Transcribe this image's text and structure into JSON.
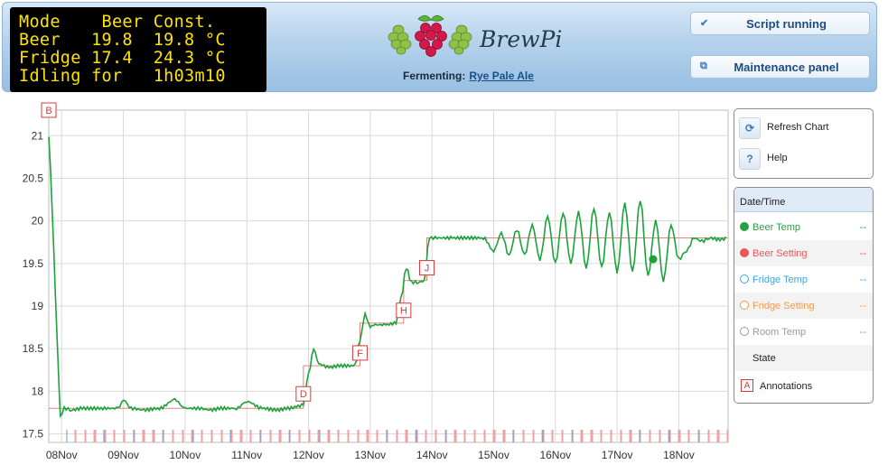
{
  "lcd": {
    "lines": [
      "Mode    Beer Const.",
      "Beer   19.8  19.8 °C",
      "Fridge 17.4  24.3 °C",
      "Idling for   1h03m10"
    ]
  },
  "brand": {
    "logo_icon": "raspberry-hops-logo-icon",
    "name": "BrewPi"
  },
  "fermenting": {
    "label": "Fermenting:",
    "beer_name": "Rye Pale Ale"
  },
  "buttons": {
    "script": {
      "label": "Script running",
      "icon": "check-icon"
    },
    "maintenance": {
      "label": "Maintenance panel",
      "icon": "window-icon"
    }
  },
  "controls": {
    "refresh": {
      "label": "Refresh Chart",
      "icon": "refresh-icon"
    },
    "help": {
      "label": "Help",
      "icon": "help-icon"
    }
  },
  "legend": {
    "header": "Date/Time",
    "items": [
      {
        "name": "Beer Temp",
        "value": "--",
        "color": "#27a043",
        "filled": true
      },
      {
        "name": "Beer Setting",
        "value": "--",
        "color": "#e85858",
        "filled": true
      },
      {
        "name": "Fridge Temp",
        "value": "--",
        "color": "#38a6e6",
        "filled": false
      },
      {
        "name": "Fridge Setting",
        "value": "--",
        "color": "#f29a4a",
        "filled": false
      },
      {
        "name": "Room Temp",
        "value": "--",
        "color": "#9a9a9a",
        "filled": false
      },
      {
        "name": "State",
        "value": "",
        "color": "#ffffff",
        "filled": false
      }
    ],
    "annotations": {
      "box_letter": "A",
      "label": "Annotations"
    }
  },
  "chart_data": {
    "type": "line",
    "x_type": "date",
    "x_range": [
      "2013-11-07T19:00",
      "2013-11-18T19:10"
    ],
    "x_ticks": [
      {
        "label": "08Nov",
        "date": "2013-11-08T00:00"
      },
      {
        "label": "09Nov",
        "date": "2013-11-09T00:00"
      },
      {
        "label": "10Nov",
        "date": "2013-11-10T00:00"
      },
      {
        "label": "11Nov",
        "date": "2013-11-11T00:00"
      },
      {
        "label": "12Nov",
        "date": "2013-11-12T00:00"
      },
      {
        "label": "13Nov",
        "date": "2013-11-13T00:00"
      },
      {
        "label": "14Nov",
        "date": "2013-11-14T00:00"
      },
      {
        "label": "15Nov",
        "date": "2013-11-15T00:00"
      },
      {
        "label": "16Nov",
        "date": "2013-11-16T00:00"
      },
      {
        "label": "17Nov",
        "date": "2013-11-17T00:00"
      },
      {
        "label": "18Nov",
        "date": "2013-11-18T00:00"
      }
    ],
    "y_range": [
      17.4,
      21.3
    ],
    "y_ticks": [
      17.5,
      18,
      18.5,
      19,
      19.5,
      20,
      20.5,
      21
    ],
    "grid": true,
    "series": [
      {
        "name": "Beer Temp",
        "color": "#1aa33a",
        "x": [
          "2013-11-07T19:00",
          "2013-11-07T19:40",
          "2013-11-07T20:30",
          "2013-11-07T21:30",
          "2013-11-07T22:30",
          "2013-11-07T23:30",
          "2013-11-08T01:00",
          "2013-11-08T04:00",
          "2013-11-08T08:00",
          "2013-11-08T12:00",
          "2013-11-08T16:00",
          "2013-11-08T22:00",
          "2013-11-09T00:00",
          "2013-11-09T03:00",
          "2013-11-09T08:00",
          "2013-11-09T14:00",
          "2013-11-09T20:00",
          "2013-11-10T00:00",
          "2013-11-10T05:00",
          "2013-11-10T10:00",
          "2013-11-10T14:00",
          "2013-11-10T20:00",
          "2013-11-11T00:00",
          "2013-11-11T06:00",
          "2013-11-11T12:00",
          "2013-11-11T16:00",
          "2013-11-11T20:00",
          "2013-11-11T22:00",
          "2013-11-12T00:00",
          "2013-11-12T02:00",
          "2013-11-12T04:00",
          "2013-11-12T08:00",
          "2013-11-12T12:00",
          "2013-11-12T18:00",
          "2013-11-12T20:00",
          "2013-11-12T22:00",
          "2013-11-13T00:00",
          "2013-11-13T02:00",
          "2013-11-13T06:00",
          "2013-11-13T10:00",
          "2013-11-13T12:00",
          "2013-11-13T14:00",
          "2013-11-13T16:00",
          "2013-11-13T19:00",
          "2013-11-13T21:00",
          "2013-11-13T23:00",
          "2013-11-14T02:00",
          "2013-11-14T08:00",
          "2013-11-14T14:00",
          "2013-11-14T20:00",
          "2013-11-15T00:00",
          "2013-11-15T03:00",
          "2013-11-15T06:00",
          "2013-11-15T09:00",
          "2013-11-15T12:00",
          "2013-11-15T15:00",
          "2013-11-15T18:00",
          "2013-11-15T21:00",
          "2013-11-16T00:00",
          "2013-11-16T03:00",
          "2013-11-16T06:00",
          "2013-11-16T09:00",
          "2013-11-16T12:00",
          "2013-11-16T15:00",
          "2013-11-16T18:00",
          "2013-11-16T21:00",
          "2013-11-17T00:00",
          "2013-11-17T03:00",
          "2013-11-17T06:00",
          "2013-11-17T09:00",
          "2013-11-17T12:00",
          "2013-11-17T15:00",
          "2013-11-17T18:00",
          "2013-11-17T21:00",
          "2013-11-18T00:00",
          "2013-11-18T03:00",
          "2013-11-18T06:00",
          "2013-11-18T09:00",
          "2013-11-18T12:00",
          "2013-11-18T16:00",
          "2013-11-18T19:00"
        ],
        "y": [
          21.0,
          20.6,
          20.0,
          19.2,
          18.4,
          17.7,
          17.8,
          17.78,
          17.8,
          17.8,
          17.8,
          17.8,
          17.9,
          17.8,
          17.78,
          17.8,
          17.9,
          17.8,
          17.8,
          17.78,
          17.8,
          17.8,
          17.88,
          17.8,
          17.78,
          17.8,
          17.82,
          17.85,
          18.2,
          18.5,
          18.32,
          18.28,
          18.3,
          18.3,
          18.6,
          18.9,
          18.76,
          18.78,
          18.78,
          18.8,
          19.1,
          19.45,
          19.28,
          19.28,
          19.3,
          19.8,
          19.8,
          19.8,
          19.8,
          19.8,
          19.65,
          19.85,
          19.6,
          19.9,
          19.6,
          19.95,
          19.55,
          20.05,
          19.5,
          20.1,
          19.5,
          20.1,
          19.45,
          20.15,
          19.45,
          20.1,
          19.4,
          20.2,
          19.4,
          20.25,
          19.35,
          20.0,
          19.3,
          19.95,
          19.55,
          19.65,
          19.8,
          19.76,
          19.8,
          19.78,
          19.8
        ]
      },
      {
        "name": "Beer Setting",
        "color": "#e88080",
        "x": [
          "2013-11-07T19:00",
          "2013-11-07T23:30",
          "2013-11-11T22:00",
          "2013-11-11T22:01",
          "2013-11-12T20:00",
          "2013-11-12T20:01",
          "2013-11-13T13:00",
          "2013-11-13T13:01",
          "2013-11-13T22:00",
          "2013-11-13T22:01",
          "2013-11-18T19:00"
        ],
        "y": [
          17.8,
          17.8,
          17.8,
          18.3,
          18.3,
          18.8,
          18.8,
          19.3,
          19.3,
          19.8,
          19.8
        ]
      }
    ],
    "highlight_point": {
      "x": "2013-11-17T14:00",
      "y": 19.55
    },
    "annotations": [
      {
        "label": "B",
        "x": "2013-11-07T19:00",
        "y": 21.3
      },
      {
        "label": "D",
        "x": "2013-11-11T22:00",
        "y": 17.97
      },
      {
        "label": "F",
        "x": "2013-11-12T20:00",
        "y": 18.45
      },
      {
        "label": "H",
        "x": "2013-11-13T13:00",
        "y": 18.95
      },
      {
        "label": "J",
        "x": "2013-11-13T22:00",
        "y": 19.45
      }
    ]
  }
}
